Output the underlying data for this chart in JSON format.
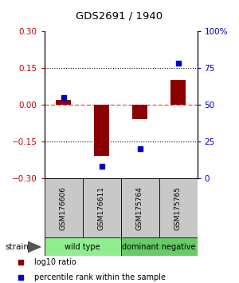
{
  "title": "GDS2691 / 1940",
  "samples": [
    "GSM176606",
    "GSM176611",
    "GSM175764",
    "GSM175765"
  ],
  "groups": [
    {
      "label": "wild type",
      "indices": [
        0,
        1
      ],
      "color": "#90EE90"
    },
    {
      "label": "dominant negative",
      "indices": [
        2,
        3
      ],
      "color": "#66CC66"
    }
  ],
  "log10_ratio": [
    0.02,
    -0.21,
    -0.06,
    0.1
  ],
  "percentile_rank": [
    55,
    8,
    20,
    78
  ],
  "ylim_left": [
    -0.3,
    0.3
  ],
  "ylim_right": [
    0,
    100
  ],
  "yticks_left": [
    -0.3,
    -0.15,
    0,
    0.15,
    0.3
  ],
  "yticks_right": [
    0,
    25,
    50,
    75,
    100
  ],
  "hline_dotted": [
    -0.15,
    0.15
  ],
  "hline_zero_color": "#FF4444",
  "bar_color": "#8B0000",
  "dot_color": "#0000CC",
  "left_tick_color": "#CC0000",
  "right_tick_color": "#0000CC",
  "strain_label": "strain",
  "legend_ratio_label": "log10 ratio",
  "legend_pct_label": "percentile rank within the sample",
  "bar_width": 0.4,
  "dot_size": 5,
  "sample_box_color": "#C8C8C8",
  "group_colors": [
    "#90EE90",
    "#66CC66"
  ]
}
